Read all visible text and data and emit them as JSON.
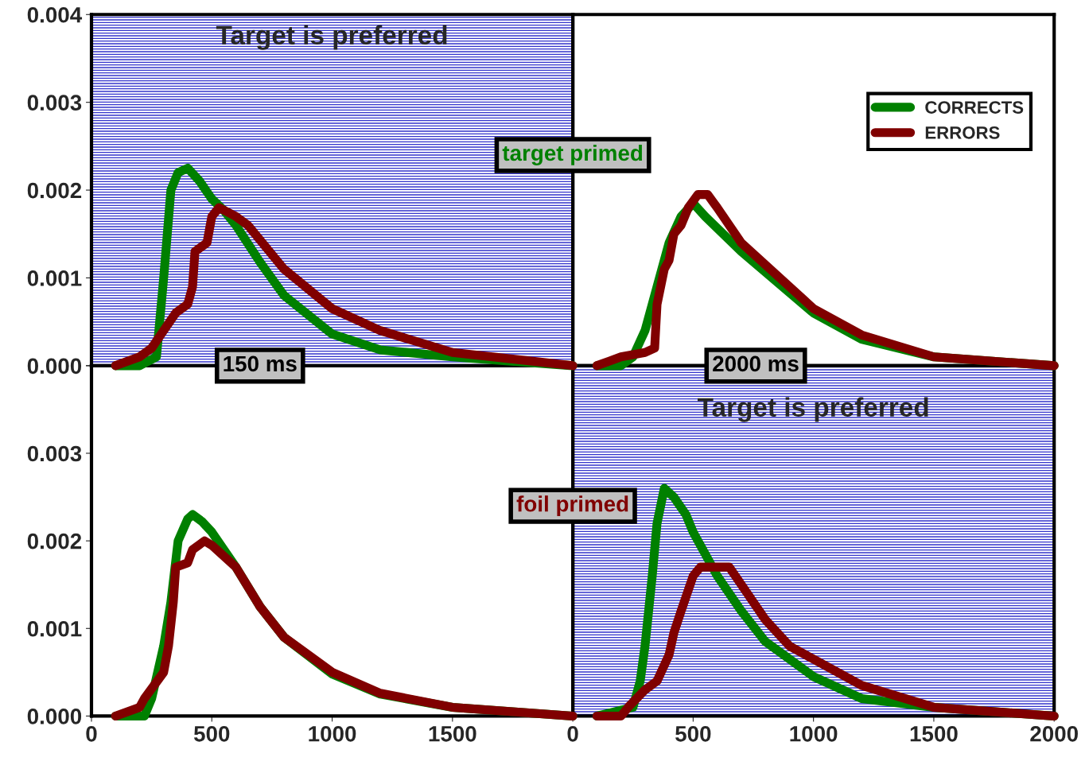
{
  "chart_data": [
    {
      "type": "line",
      "title": "Target is preferred",
      "annotations": [
        "target primed",
        "150 ms"
      ],
      "xlim": [
        0,
        2000
      ],
      "ylim": [
        0,
        0.004
      ],
      "yticks": [
        {
          "value": 0,
          "label": "0.000"
        },
        {
          "value": 0.001,
          "label": "0.001"
        },
        {
          "value": 0.002,
          "label": "0.002"
        },
        {
          "value": 0.003,
          "label": "0.003"
        },
        {
          "value": 0.004,
          "label": "0.004"
        }
      ],
      "tick_labels": "y",
      "bands": [
        {
          "axis": "y",
          "from": 0,
          "to": 0.004,
          "color": "#3333cc"
        }
      ],
      "series": [
        {
          "color": "#008000",
          "x": [
            100,
            200,
            270,
            300,
            330,
            360,
            400,
            450,
            500,
            550,
            600,
            700,
            800,
            1000,
            1200,
            1500,
            2000
          ],
          "values": [
            0,
            0,
            0.0001,
            0.001,
            0.002,
            0.0022,
            0.00225,
            0.0021,
            0.0019,
            0.00177,
            0.0016,
            0.00118,
            0.0008,
            0.00036,
            0.00018,
            0.0001,
            0
          ]
        },
        {
          "color": "#800000",
          "x": [
            100,
            200,
            250,
            300,
            350,
            400,
            420,
            430,
            480,
            500,
            530,
            600,
            650,
            800,
            1000,
            1200,
            1500,
            2000
          ],
          "values": [
            0,
            0.0001,
            0.0002,
            0.0004,
            0.0006,
            0.0007,
            0.0009,
            0.0013,
            0.0014,
            0.0017,
            0.0018,
            0.0017,
            0.0016,
            0.0011,
            0.00065,
            0.0004,
            0.00015,
            0
          ]
        }
      ]
    },
    {
      "type": "line",
      "annotations": [
        "2000 ms"
      ],
      "xlim": [
        0,
        2000
      ],
      "ylim": [
        0,
        0.004
      ],
      "tick_labels": false,
      "legend": "top right",
      "series": [
        {
          "name": "CORRECTS",
          "color": "#008000",
          "x": [
            100,
            200,
            250,
            300,
            350,
            400,
            450,
            500,
            550,
            700,
            1000,
            1200,
            1500,
            2000
          ],
          "values": [
            0,
            0,
            0.0001,
            0.0004,
            0.0009,
            0.0014,
            0.0017,
            0.00185,
            0.0017,
            0.0013,
            0.0006,
            0.0003,
            0.0001,
            0
          ]
        },
        {
          "name": "ERRORS",
          "color": "#800000",
          "x": [
            100,
            200,
            300,
            340,
            350,
            380,
            400,
            420,
            450,
            480,
            520,
            560,
            600,
            700,
            1000,
            1200,
            1500,
            2000
          ],
          "values": [
            0,
            0.0001,
            0.00015,
            0.0002,
            0.0007,
            0.0011,
            0.0012,
            0.0015,
            0.0016,
            0.0018,
            0.00195,
            0.00195,
            0.0018,
            0.0014,
            0.00065,
            0.00035,
            0.0001,
            0
          ]
        }
      ]
    },
    {
      "type": "line",
      "annotations": [
        "foil primed"
      ],
      "xlim": [
        0,
        2000
      ],
      "ylim": [
        0,
        0.004
      ],
      "xticks": [
        0,
        500,
        1000,
        1500
      ],
      "yticks": [
        {
          "value": 0,
          "label": "0.000"
        },
        {
          "value": 0.001,
          "label": "0.001"
        },
        {
          "value": 0.002,
          "label": "0.002"
        },
        {
          "value": 0.003,
          "label": "0.003"
        },
        {
          "value": 0.004,
          "label": null
        }
      ],
      "series": [
        {
          "color": "#008000",
          "x": [
            100,
            220,
            250,
            300,
            330,
            360,
            400,
            420,
            460,
            500,
            600,
            700,
            800,
            1000,
            1200,
            1500,
            2000
          ],
          "values": [
            0,
            0,
            0.0002,
            0.0008,
            0.0013,
            0.002,
            0.00225,
            0.0023,
            0.00222,
            0.0021,
            0.0017,
            0.00125,
            0.0009,
            0.00048,
            0.00025,
            0.0001,
            0
          ]
        },
        {
          "color": "#800000",
          "x": [
            100,
            200,
            220,
            260,
            300,
            320,
            340,
            350,
            400,
            420,
            470,
            500,
            600,
            700,
            800,
            1000,
            1200,
            1500,
            2000
          ],
          "values": [
            0,
            0.0001,
            0.0002,
            0.00035,
            0.0005,
            0.0008,
            0.0013,
            0.0017,
            0.00175,
            0.0019,
            0.002,
            0.00195,
            0.0017,
            0.00125,
            0.0009,
            0.0005,
            0.00026,
            0.0001,
            0
          ]
        }
      ]
    },
    {
      "type": "line",
      "title": "Target is preferred",
      "xlim": [
        0,
        2000
      ],
      "ylim": [
        0,
        0.004
      ],
      "xticks": [
        0,
        500,
        1000,
        1500,
        2000
      ],
      "tick_labels": "x",
      "bands": [
        {
          "axis": "y",
          "from": 0,
          "to": 0.004,
          "color": "#3333cc"
        }
      ],
      "series": [
        {
          "color": "#008000",
          "x": [
            100,
            250,
            280,
            300,
            330,
            350,
            380,
            420,
            470,
            500,
            600,
            700,
            800,
            1000,
            1200,
            1500,
            2000
          ],
          "values": [
            0,
            0.0001,
            0.0004,
            0.0008,
            0.0016,
            0.0022,
            0.0026,
            0.0025,
            0.0023,
            0.0021,
            0.0016,
            0.0012,
            0.00085,
            0.00045,
            0.0002,
            0.0001,
            0
          ]
        },
        {
          "color": "#800000",
          "x": [
            100,
            200,
            230,
            300,
            350,
            400,
            420,
            450,
            500,
            530,
            600,
            650,
            700,
            800,
            900,
            1000,
            1200,
            1500,
            2000
          ],
          "values": [
            0,
            0,
            0.0001,
            0.0003,
            0.0004,
            0.0007,
            0.00095,
            0.0012,
            0.0016,
            0.0017,
            0.0017,
            0.0017,
            0.0015,
            0.0011,
            0.0008,
            0.00065,
            0.00035,
            0.0001,
            0
          ]
        }
      ]
    }
  ]
}
